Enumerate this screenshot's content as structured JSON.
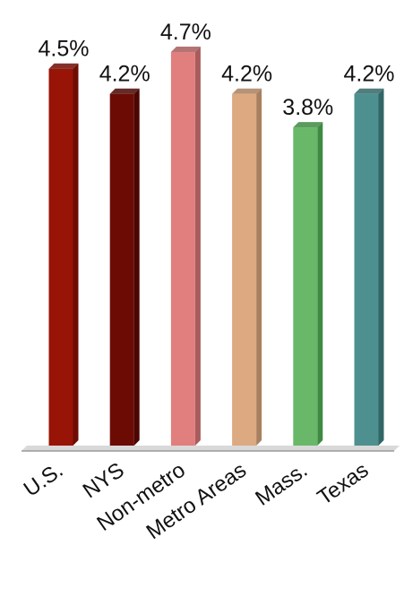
{
  "chart_data": {
    "type": "bar",
    "categories": [
      "U.S.",
      "NYS",
      "Non-metro",
      "Metro Areas",
      "Mass.",
      "Texas"
    ],
    "values": [
      4.5,
      4.2,
      4.7,
      4.2,
      3.8,
      4.2
    ],
    "value_labels": [
      "4.5%",
      "4.2%",
      "4.7%",
      "4.2%",
      "3.8%",
      "4.2%"
    ],
    "colors": [
      "#981406",
      "#6c0b04",
      "#e07f7e",
      "#dca981",
      "#69b86a",
      "#4e9090"
    ],
    "side_colors": [
      "#6e0c03",
      "#4a0602",
      "#a85c5c",
      "#a9805f",
      "#3f8a42",
      "#326666"
    ],
    "ylim": [
      0,
      5.0
    ],
    "title": "",
    "xlabel": "",
    "ylabel": "",
    "grid": false,
    "legend": "none"
  }
}
